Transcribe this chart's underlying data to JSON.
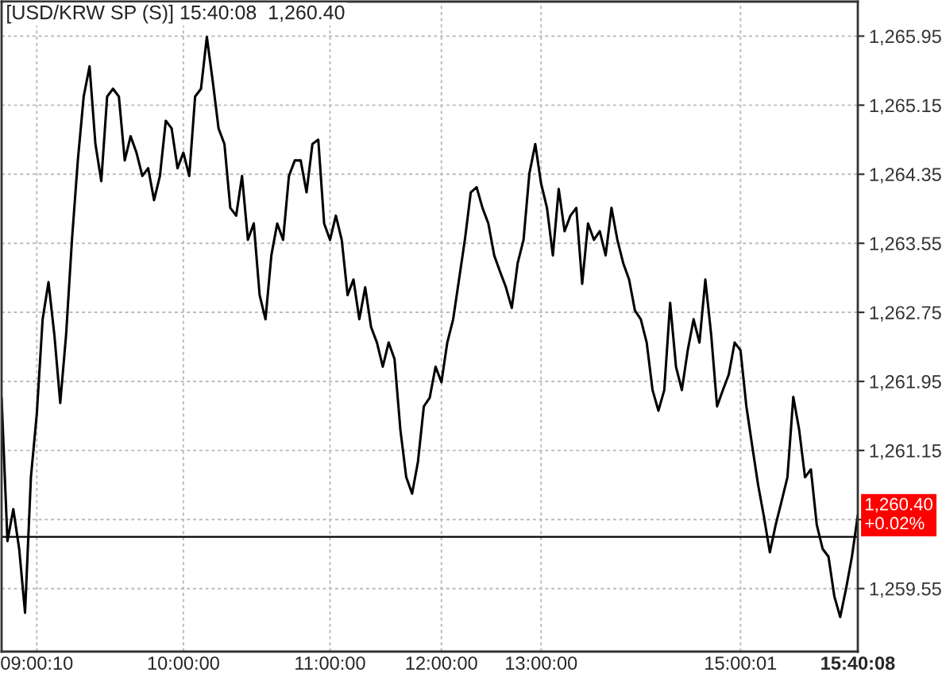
{
  "chart_data": {
    "type": "line",
    "title": "[USD/KRW SP (S)] 15:40:08  1,260.40",
    "categories": [
      null,
      null,
      null,
      null,
      null,
      null,
      "09:00:10",
      null,
      null,
      null,
      null,
      null,
      null,
      null,
      null,
      null,
      null,
      null,
      null,
      null,
      null,
      null,
      null,
      null,
      null,
      null,
      null,
      null,
      null,
      null,
      null,
      "10:00:00",
      null,
      null,
      null,
      null,
      null,
      null,
      null,
      null,
      null,
      null,
      null,
      null,
      null,
      null,
      null,
      null,
      null,
      null,
      null,
      null,
      null,
      null,
      null,
      null,
      "11:00:00",
      null,
      null,
      null,
      null,
      null,
      null,
      null,
      null,
      null,
      null,
      null,
      null,
      null,
      null,
      null,
      null,
      null,
      null,
      "12:00:00",
      null,
      null,
      null,
      null,
      null,
      null,
      null,
      null,
      null,
      null,
      null,
      null,
      null,
      null,
      null,
      null,
      "13:00:00",
      null,
      null,
      null,
      null,
      null,
      null,
      null,
      null,
      null,
      null,
      null,
      null,
      null,
      null,
      null,
      null,
      null,
      null,
      null,
      null,
      null,
      null,
      null,
      null,
      null,
      null,
      null,
      null,
      null,
      null,
      null,
      null,
      null,
      "15:00:01",
      null,
      null,
      null,
      null,
      null,
      null,
      null,
      null,
      null,
      null,
      null,
      null,
      null,
      null,
      null,
      null,
      null,
      null,
      null,
      "15:40:08"
    ],
    "series": [
      {
        "color": "#000000",
        "values": [
          1261.76,
          1260.1,
          1260.47,
          1260.01,
          1259.27,
          1260.84,
          1261.57,
          1262.67,
          1263.1,
          1262.49,
          1261.7,
          1262.49,
          1263.59,
          1264.51,
          1265.25,
          1265.6,
          1264.7,
          1264.27,
          1265.25,
          1265.34,
          1265.25,
          1264.51,
          1264.79,
          1264.6,
          1264.33,
          1264.42,
          1264.05,
          1264.33,
          1264.97,
          1264.88,
          1264.42,
          1264.6,
          1264.33,
          1265.25,
          1265.34,
          1265.94,
          1265.43,
          1264.88,
          1264.7,
          1263.96,
          1263.87,
          1264.33,
          1263.59,
          1263.78,
          1262.95,
          1262.67,
          1263.41,
          1263.78,
          1263.59,
          1264.33,
          1264.51,
          1264.51,
          1264.14,
          1264.7,
          1264.75,
          1263.78,
          1263.59,
          1263.87,
          1263.59,
          1262.95,
          1263.13,
          1262.67,
          1263.04,
          1262.58,
          1262.4,
          1262.12,
          1262.4,
          1262.21,
          1261.39,
          1260.84,
          1260.65,
          1261.02,
          1261.66,
          1261.76,
          1262.12,
          1261.94,
          1262.4,
          1262.67,
          1263.13,
          1263.59,
          1264.14,
          1264.2,
          1263.96,
          1263.78,
          1263.41,
          1263.22,
          1263.04,
          1262.8,
          1263.32,
          1263.59,
          1264.36,
          1264.7,
          1264.24,
          1263.96,
          1263.41,
          1264.18,
          1263.69,
          1263.87,
          1263.96,
          1263.08,
          1263.78,
          1263.59,
          1263.69,
          1263.41,
          1263.96,
          1263.59,
          1263.32,
          1263.13,
          1262.77,
          1262.67,
          1262.4,
          1261.85,
          1261.61,
          1261.85,
          1262.86,
          1262.12,
          1261.85,
          1262.31,
          1262.67,
          1262.4,
          1263.13,
          1262.49,
          1261.66,
          1261.85,
          1262.03,
          1262.4,
          1262.31,
          1261.66,
          1261.2,
          1260.75,
          1260.38,
          1259.97,
          1260.29,
          1260.56,
          1260.84,
          1261.77,
          1261.39,
          1260.84,
          1260.93,
          1260.29,
          1260.01,
          1259.92,
          1259.46,
          1259.22,
          1259.55,
          1259.92,
          1260.4
        ]
      }
    ],
    "ylim": [
      1258.82,
      1266.35
    ],
    "yticks": [
      {
        "value": 1259.55,
        "label": "1,259.55"
      },
      {
        "value": 1260.35,
        "label": null
      },
      {
        "value": 1261.15,
        "label": "1,261.15"
      },
      {
        "value": 1261.95,
        "label": "1,261.95"
      },
      {
        "value": 1262.75,
        "label": "1,262.75"
      },
      {
        "value": 1263.55,
        "label": "1,263.55"
      },
      {
        "value": 1264.35,
        "label": "1,264.35"
      },
      {
        "value": 1265.15,
        "label": "1,265.15"
      },
      {
        "value": 1265.95,
        "label": "1,265.95"
      }
    ],
    "ref_lines": [
      {
        "axis": "y",
        "value": 1260.15,
        "color": "#000000"
      }
    ],
    "annotations": [
      {
        "text": "1,260.40\n+0.02%",
        "x": "15:40:08",
        "y": 1260.4
      }
    ],
    "grid": true,
    "legend": false,
    "marker": "none",
    "line_style": "solid"
  }
}
